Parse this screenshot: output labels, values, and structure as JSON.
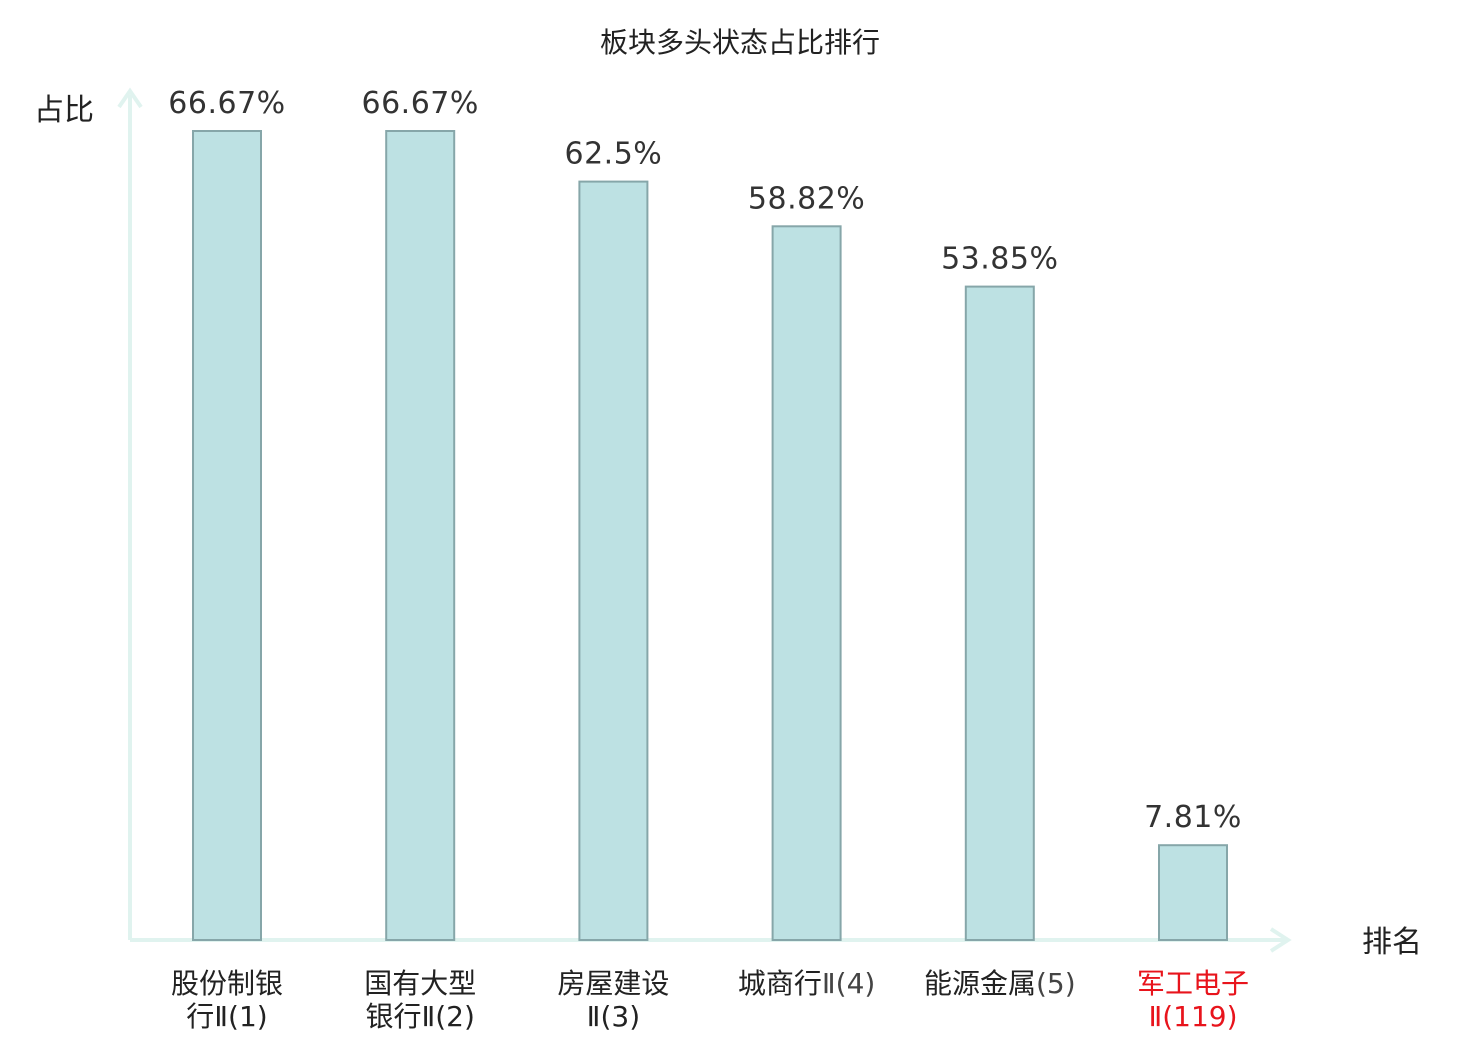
{
  "chart_data": {
    "type": "bar",
    "title": "板块多头状态占比排行",
    "ylabel": "占比",
    "xlabel": "排名",
    "ylim": [
      0,
      70
    ],
    "grid": false,
    "categories": [
      {
        "line1": "股份制银",
        "line1_suffix": "",
        "line2": "行Ⅱ(1)",
        "highlight": false
      },
      {
        "line1": "国有大型",
        "line1_suffix": "",
        "line2": "银行Ⅱ(2)",
        "highlight": false
      },
      {
        "line1": "房屋建设",
        "line1_suffix": "",
        "line2": "Ⅱ(3)",
        "highlight": false
      },
      {
        "line1": "城商行",
        "line1_suffix": "Ⅱ(4)",
        "line2": "",
        "highlight": false
      },
      {
        "line1": "能源金属",
        "line1_suffix": "(5)",
        "line2": "",
        "highlight": false
      },
      {
        "line1": "军工电子",
        "line1_suffix": "",
        "line2": "Ⅱ(119)",
        "highlight": true
      }
    ],
    "values": [
      66.67,
      66.67,
      62.5,
      58.82,
      53.85,
      7.81
    ],
    "value_labels": [
      "66.67%",
      "66.67%",
      "62.5%",
      "58.82%",
      "53.85%",
      "7.81%"
    ],
    "colors": {
      "bar_fill": "#bde1e3",
      "bar_stroke": "#86a6a9",
      "axis": "#e0f3ef",
      "label_text": "#222222",
      "number_text": "#444444",
      "highlight": "#e8141c"
    }
  }
}
